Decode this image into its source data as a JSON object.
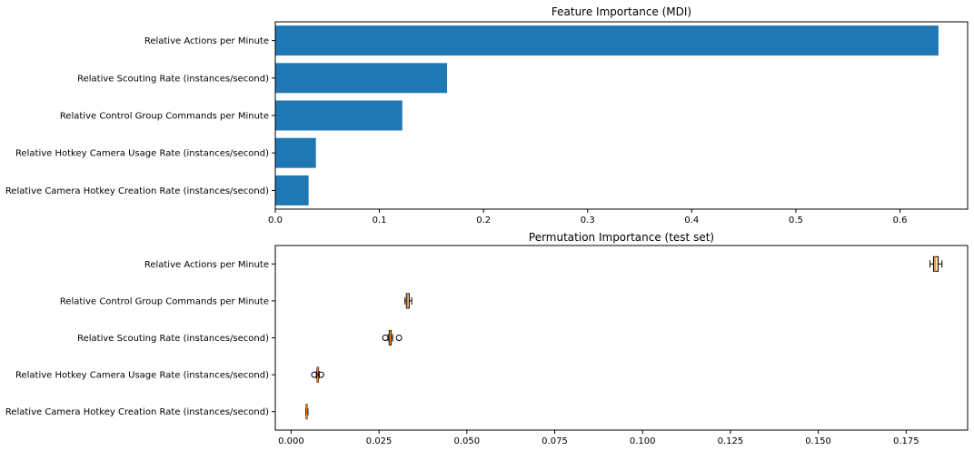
{
  "chart_data": [
    {
      "type": "bar",
      "orientation": "horizontal",
      "title": "Feature Importance (MDI)",
      "categories": [
        "Relative Actions per Minute",
        "Relative Scouting Rate (instances/second)",
        "Relative Control Group Commands per Minute",
        "Relative Hotkey Camera Usage Rate (instances/second)",
        "Relative Camera Hotkey Creation Rate (instances/second)"
      ],
      "values": [
        0.637,
        0.165,
        0.122,
        0.039,
        0.032
      ],
      "xlim": [
        0,
        0.665
      ],
      "xticks": [
        "0.0",
        "0.1",
        "0.2",
        "0.3",
        "0.4",
        "0.5",
        "0.6"
      ],
      "bar_color": "#1f77b4",
      "grid": false
    },
    {
      "type": "box",
      "orientation": "horizontal",
      "title": "Permutation Importance (test set)",
      "categories": [
        "Relative Actions per Minute",
        "Relative Control Group Commands per Minute",
        "Relative Scouting Rate (instances/second)",
        "Relative Hotkey Camera Usage Rate (instances/second)",
        "Relative Camera Hotkey Creation Rate (instances/second)"
      ],
      "boxes": [
        {
          "whislo": 0.1818,
          "q1": 0.1828,
          "med": 0.1832,
          "q3": 0.1841,
          "whishi": 0.1852,
          "fliers": []
        },
        {
          "whislo": 0.0324,
          "q1": 0.0328,
          "med": 0.0331,
          "q3": 0.0336,
          "whishi": 0.0343,
          "fliers": []
        },
        {
          "whislo": 0.0276,
          "q1": 0.0279,
          "med": 0.0282,
          "q3": 0.0285,
          "whishi": 0.0289,
          "fliers": [
            0.0268,
            0.0307
          ]
        },
        {
          "whislo": 0.0072,
          "q1": 0.0074,
          "med": 0.0076,
          "q3": 0.0078,
          "whishi": 0.008,
          "fliers": [
            0.0066,
            0.0085
          ]
        },
        {
          "whislo": 0.0042,
          "q1": 0.0043,
          "med": 0.0045,
          "q3": 0.0046,
          "whishi": 0.0048,
          "fliers": []
        }
      ],
      "xlim": [
        -0.0045,
        0.1925
      ],
      "xticks": [
        "0.000",
        "0.025",
        "0.050",
        "0.075",
        "0.100",
        "0.125",
        "0.150",
        "0.175"
      ],
      "box_fill": "#ffe0b2",
      "median_color": "#ff7f0e",
      "grid": false
    }
  ]
}
